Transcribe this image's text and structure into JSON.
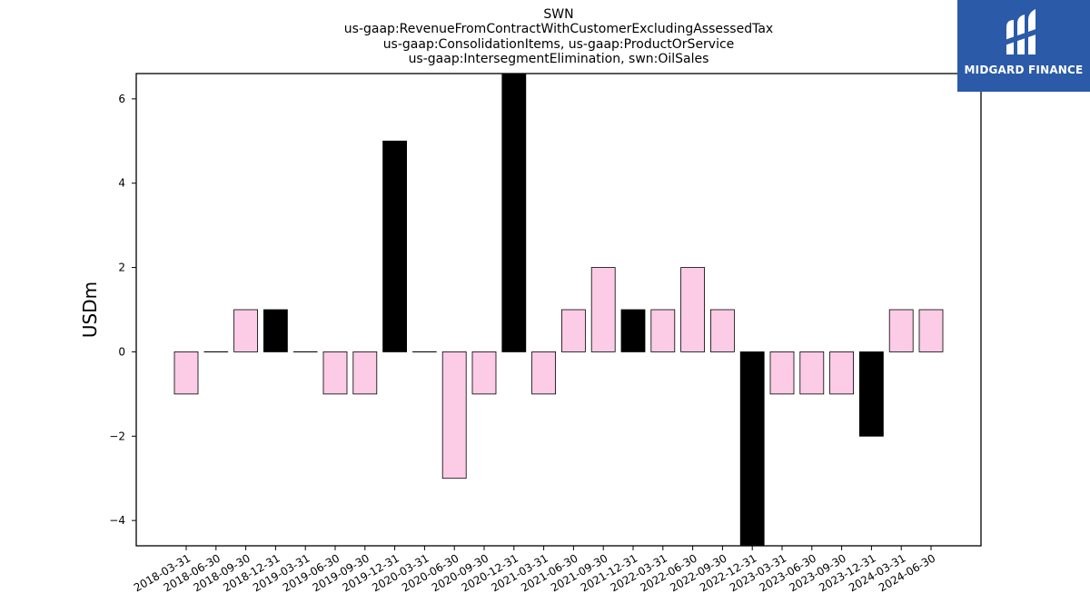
{
  "chart_data": {
    "type": "bar",
    "title_lines": [
      "SWN",
      "us-gaap:RevenueFromContractWithCustomerExcludingAssessedTax",
      "us-gaap:ConsolidationItems, us-gaap:ProductOrService",
      "us-gaap:IntersegmentElimination, swn:OilSales"
    ],
    "xlabel": "",
    "ylabel": "USDm",
    "ylim": [
      -4.6,
      6.6
    ],
    "yticks": [
      -4,
      -2,
      0,
      2,
      4,
      6
    ],
    "ytick_labels": [
      "−4",
      "−2",
      "0",
      "2",
      "4",
      "6"
    ],
    "categories": [
      "2018-03-31",
      "2018-06-30",
      "2018-09-30",
      "2018-12-31",
      "2019-03-31",
      "2019-06-30",
      "2019-09-30",
      "2019-12-31",
      "2020-03-31",
      "2020-06-30",
      "2020-09-30",
      "2020-12-31",
      "2021-03-31",
      "2021-06-30",
      "2021-09-30",
      "2021-12-31",
      "2022-03-31",
      "2022-06-30",
      "2022-09-30",
      "2022-12-31",
      "2023-03-31",
      "2023-06-30",
      "2023-09-30",
      "2023-12-31",
      "2024-03-31",
      "2024-06-30"
    ],
    "values": [
      -1,
      0,
      1,
      1,
      0,
      -1,
      -1,
      5,
      0,
      -3,
      -1,
      7,
      -1,
      1,
      2,
      1,
      1,
      2,
      1,
      -5,
      -1,
      -1,
      -1,
      -2,
      1,
      1
    ],
    "annual_flags": [
      false,
      false,
      false,
      true,
      false,
      false,
      false,
      true,
      false,
      false,
      false,
      true,
      false,
      false,
      false,
      true,
      false,
      false,
      false,
      true,
      false,
      false,
      false,
      true,
      false,
      false
    ],
    "colors": {
      "quarterly": "#fccbe5",
      "annual": "#000000",
      "edge": "#000000"
    },
    "grid": false
  },
  "logo": {
    "text": "MIDGARD FINANCE",
    "color": "#2b5aa8"
  }
}
